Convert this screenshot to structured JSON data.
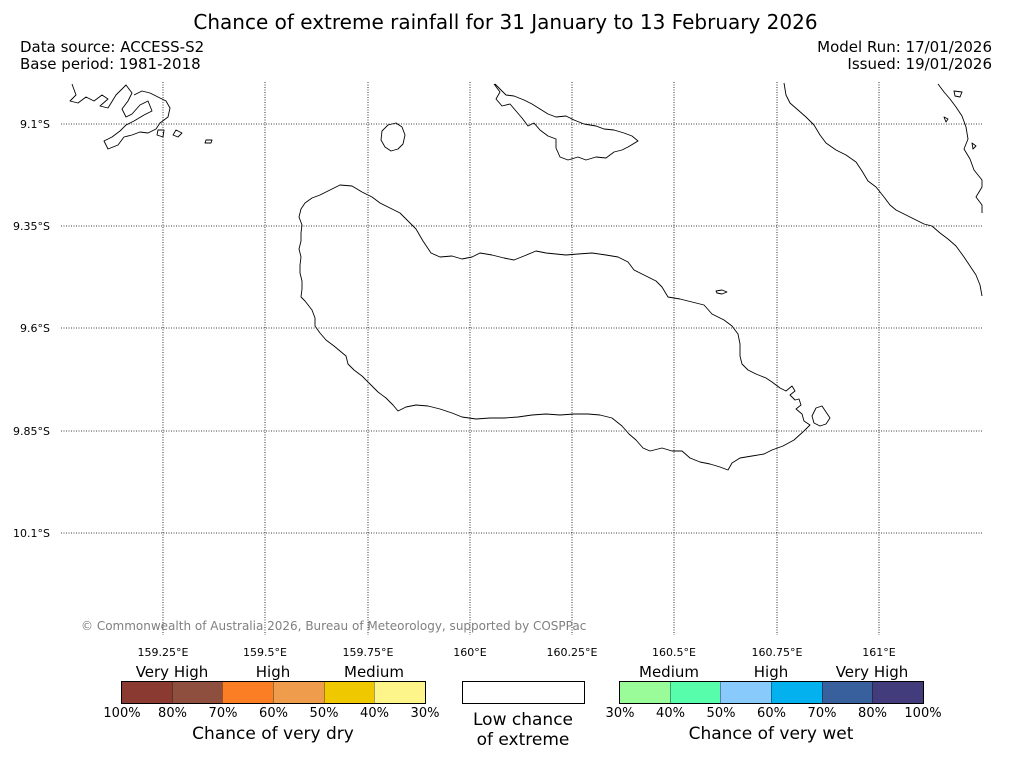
{
  "title": "Chance of extreme rainfall for 31 January to 13 February 2026",
  "data_source": "Data source: ACCESS-S2",
  "base_period": "Base period: 1981-2018",
  "model_run": "Model Run: 17/01/2026",
  "issued": "Issued: 19/01/2026",
  "map": {
    "lat_labels": [
      "9.1°S",
      "9.35°S",
      "9.6°S",
      "9.85°S",
      "10.1°S"
    ],
    "lon_labels": [
      "159.25°E",
      "159.5°E",
      "159.75°E",
      "160°E",
      "160.25°E",
      "160.5°E",
      "160.75°E",
      "161°E"
    ],
    "copyright": "© Commonwealth of Australia 2026, Bureau of Meteorology, supported by COSPPac"
  },
  "legend": {
    "dry": {
      "headings": [
        "Very High",
        "High",
        "Medium"
      ],
      "colors": [
        "#8b3a32",
        "#8e4f3e",
        "#fb7d24",
        "#ef9d4c",
        "#f0c800",
        "#fef58a"
      ],
      "ticks": [
        "100%",
        "80%",
        "70%",
        "60%",
        "50%",
        "40%",
        "30%"
      ],
      "caption": "Chance of very dry"
    },
    "low": {
      "line1": "Low chance",
      "line2": "of extreme"
    },
    "wet": {
      "headings": [
        "Medium",
        "High",
        "Very High"
      ],
      "colors": [
        "#9afc98",
        "#57fdaa",
        "#89cafc",
        "#02b1ee",
        "#38609c",
        "#423b7c"
      ],
      "ticks": [
        "30%",
        "40%",
        "50%",
        "60%",
        "70%",
        "80%",
        "100%"
      ],
      "caption": "Chance of very wet"
    }
  }
}
